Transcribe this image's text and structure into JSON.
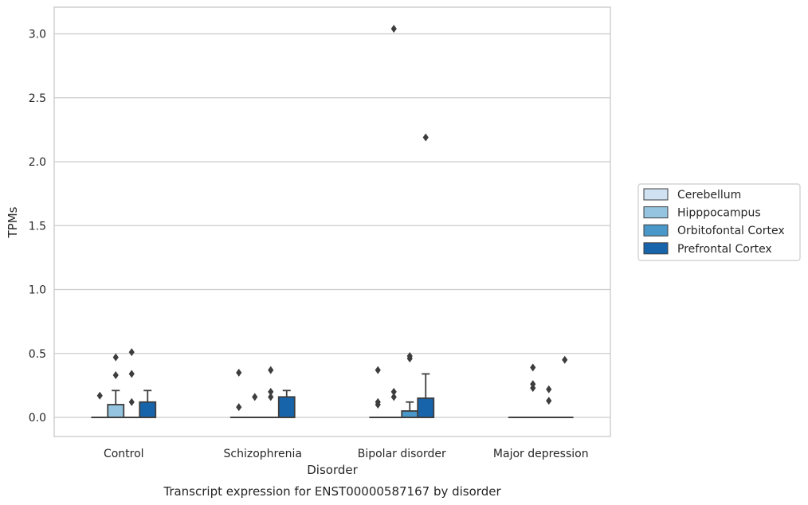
{
  "caption": "Transcript expression for ENST00000587167 by disorder",
  "colors": {
    "Cerebellum": "#d0e1f2",
    "Hipppocampus": "#94c4df",
    "Orbitofontal Cortex": "#4a98c9",
    "Prefrontal Cortex": "#1764ab"
  },
  "chart_data": {
    "type": "box",
    "title": "",
    "xlabel": "Disorder",
    "ylabel": "TPMs",
    "categories": [
      "Control",
      "Schizophrenia",
      "Bipolar disorder",
      "Major depression"
    ],
    "ylim": [
      -0.15,
      3.2
    ],
    "yticks": [
      0.0,
      0.5,
      1.0,
      1.5,
      2.0,
      2.5,
      3.0
    ],
    "ytick_labels": [
      "0.0",
      "0.5",
      "1.0",
      "1.5",
      "2.0",
      "2.5",
      "3.0"
    ],
    "grid": "horizontal",
    "legend_position": "right",
    "series": [
      {
        "name": "Cerebellum",
        "boxes": [
          {
            "q1": 0,
            "median": 0,
            "q3": 0,
            "whisker_low": 0,
            "whisker_high": 0,
            "outliers": [
              0.17
            ]
          },
          {
            "q1": 0,
            "median": 0,
            "q3": 0,
            "whisker_low": 0,
            "whisker_high": 0,
            "outliers": [
              0.35,
              0.08
            ]
          },
          {
            "q1": 0,
            "median": 0,
            "q3": 0,
            "whisker_low": 0,
            "whisker_high": 0,
            "outliers": [
              0.37,
              0.12,
              0.1
            ]
          },
          {
            "q1": 0,
            "median": 0,
            "q3": 0,
            "whisker_low": 0,
            "whisker_high": 0,
            "outliers": []
          }
        ]
      },
      {
        "name": "Hipppocampus",
        "boxes": [
          {
            "q1": 0,
            "median": 0,
            "q3": 0.1,
            "whisker_low": 0,
            "whisker_high": 0.21,
            "outliers": [
              0.47,
              0.33
            ]
          },
          {
            "q1": 0,
            "median": 0,
            "q3": 0,
            "whisker_low": 0,
            "whisker_high": 0,
            "outliers": [
              0.16
            ]
          },
          {
            "q1": 0,
            "median": 0,
            "q3": 0,
            "whisker_low": 0,
            "whisker_high": 0,
            "outliers": [
              3.04,
              0.2,
              0.16
            ]
          },
          {
            "q1": 0,
            "median": 0,
            "q3": 0,
            "whisker_low": 0,
            "whisker_high": 0,
            "outliers": [
              0.39,
              0.26,
              0.23
            ]
          }
        ]
      },
      {
        "name": "Orbitofontal Cortex",
        "boxes": [
          {
            "q1": 0,
            "median": 0,
            "q3": 0,
            "whisker_low": 0,
            "whisker_high": 0,
            "outliers": [
              0.51,
              0.34,
              0.12
            ]
          },
          {
            "q1": 0,
            "median": 0,
            "q3": 0,
            "whisker_low": 0,
            "whisker_high": 0,
            "outliers": [
              0.37,
              0.2,
              0.16
            ]
          },
          {
            "q1": 0,
            "median": 0,
            "q3": 0.05,
            "whisker_low": 0,
            "whisker_high": 0.12,
            "outliers": [
              0.48,
              0.46
            ]
          },
          {
            "q1": 0,
            "median": 0,
            "q3": 0,
            "whisker_low": 0,
            "whisker_high": 0,
            "outliers": [
              0.22,
              0.13
            ]
          }
        ]
      },
      {
        "name": "Prefrontal Cortex",
        "boxes": [
          {
            "q1": 0,
            "median": 0,
            "q3": 0.12,
            "whisker_low": 0,
            "whisker_high": 0.21,
            "outliers": []
          },
          {
            "q1": 0,
            "median": 0,
            "q3": 0.16,
            "whisker_low": 0,
            "whisker_high": 0.21,
            "outliers": []
          },
          {
            "q1": 0,
            "median": 0,
            "q3": 0.15,
            "whisker_low": 0,
            "whisker_high": 0.34,
            "outliers": [
              2.19
            ]
          },
          {
            "q1": 0,
            "median": 0,
            "q3": 0,
            "whisker_low": 0,
            "whisker_high": 0,
            "outliers": [
              0.45
            ]
          }
        ]
      }
    ]
  }
}
